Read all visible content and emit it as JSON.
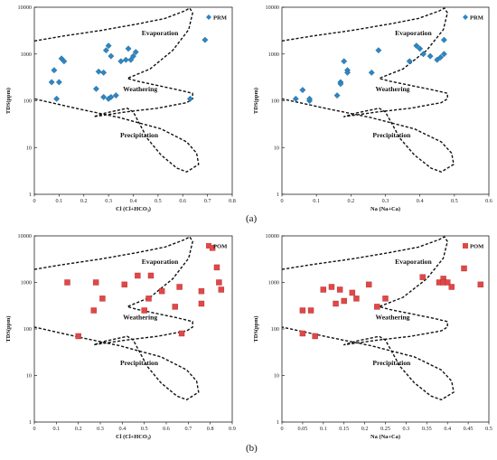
{
  "figure": {
    "panel_labels": [
      "(a)",
      "(b)"
    ]
  },
  "chart_data": [
    {
      "type": "scatter",
      "xlabel": "Cl (Cl+HCO₃)",
      "ylabel": "TDS(ppm)",
      "xlim": [
        0,
        0.8
      ],
      "ylim": [
        1,
        10000
      ],
      "yscale": "log",
      "x_ticks": [
        "0",
        "0.1",
        "0.2",
        "0.3",
        "0.4",
        "0.5",
        "0.6",
        "0.7",
        "0.8"
      ],
      "y_ticks": [
        "1",
        "10",
        "100",
        "1000",
        "10000"
      ],
      "regions": [
        "Evaporation",
        "Weathering",
        "Precipitation"
      ],
      "legend": "top-right",
      "grid": false,
      "series": [
        {
          "name": "PRM",
          "marker": "diamond",
          "color": "#2e86c1",
          "x": [
            0.07,
            0.08,
            0.09,
            0.1,
            0.11,
            0.12,
            0.25,
            0.26,
            0.28,
            0.28,
            0.29,
            0.3,
            0.3,
            0.31,
            0.31,
            0.33,
            0.35,
            0.37,
            0.38,
            0.39,
            0.4,
            0.41,
            0.63,
            0.69
          ],
          "y": [
            250,
            450,
            110,
            250,
            800,
            700,
            180,
            420,
            400,
            120,
            1200,
            1500,
            110,
            900,
            120,
            130,
            700,
            750,
            1300,
            750,
            900,
            1100,
            110,
            2000
          ]
        }
      ]
    },
    {
      "type": "scatter",
      "xlabel": "Na (Na+Ca)",
      "ylabel": "TDS(ppm)",
      "xlim": [
        0,
        0.6
      ],
      "ylim": [
        1,
        10000
      ],
      "yscale": "log",
      "x_ticks": [
        "0",
        "0.1",
        "0.2",
        "0.3",
        "0.4",
        "0.5",
        "0.6"
      ],
      "y_ticks": [
        "1",
        "10",
        "100",
        "1000",
        "10000"
      ],
      "regions": [
        "Evaporation",
        "Weathering",
        "Precipitation"
      ],
      "legend": "top-right",
      "grid": false,
      "series": [
        {
          "name": "PRM",
          "marker": "diamond",
          "color": "#2e86c1",
          "x": [
            0.04,
            0.06,
            0.08,
            0.08,
            0.16,
            0.17,
            0.17,
            0.18,
            0.19,
            0.19,
            0.26,
            0.28,
            0.37,
            0.39,
            0.4,
            0.41,
            0.43,
            0.45,
            0.46,
            0.47,
            0.47
          ],
          "y": [
            110,
            170,
            100,
            110,
            130,
            250,
            230,
            700,
            450,
            400,
            400,
            1200,
            700,
            1500,
            1300,
            1000,
            900,
            750,
            850,
            1000,
            2000
          ]
        }
      ]
    },
    {
      "type": "scatter",
      "xlabel": "Cl (Cl+HCO₃)",
      "ylabel": "TDS(ppm)",
      "xlim": [
        0,
        0.9
      ],
      "ylim": [
        1,
        10000
      ],
      "yscale": "log",
      "x_ticks": [
        "0",
        "0.1",
        "0.2",
        "0.3",
        "0.4",
        "0.5",
        "0.6",
        "0.7",
        "0.8",
        "0.9"
      ],
      "y_ticks": [
        "1",
        "10",
        "100",
        "1000",
        "10000"
      ],
      "regions": [
        "Evaporation",
        "Weathering",
        "Precipitation"
      ],
      "legend": "top-right",
      "grid": false,
      "series": [
        {
          "name": "POM",
          "marker": "square",
          "color": "#e04848",
          "x": [
            0.15,
            0.2,
            0.27,
            0.28,
            0.31,
            0.41,
            0.47,
            0.5,
            0.52,
            0.53,
            0.58,
            0.64,
            0.66,
            0.67,
            0.76,
            0.76,
            0.81,
            0.83,
            0.84,
            0.85
          ],
          "y": [
            1000,
            70,
            250,
            1000,
            450,
            900,
            1400,
            250,
            450,
            1400,
            650,
            300,
            800,
            80,
            350,
            650,
            5500,
            2100,
            1000,
            700
          ]
        }
      ]
    },
    {
      "type": "scatter",
      "xlabel": "Na (Na+Ca)",
      "ylabel": "TDS(ppm)",
      "xlim": [
        0,
        0.5
      ],
      "ylim": [
        1,
        10000
      ],
      "yscale": "log",
      "x_ticks": [
        "0",
        "0.05",
        "0.1",
        "0.15",
        "0.2",
        "0.25",
        "0.3",
        "0.35",
        "0.4",
        "0.45",
        "0.5"
      ],
      "y_ticks": [
        "1",
        "10",
        "100",
        "1000",
        "10000"
      ],
      "regions": [
        "Evaporation",
        "Weathering",
        "Precipitation"
      ],
      "legend": "top-right",
      "grid": false,
      "series": [
        {
          "name": "POM",
          "marker": "square",
          "color": "#e04848",
          "x": [
            0.05,
            0.05,
            0.07,
            0.08,
            0.1,
            0.12,
            0.13,
            0.14,
            0.15,
            0.17,
            0.18,
            0.21,
            0.23,
            0.25,
            0.34,
            0.38,
            0.39,
            0.39,
            0.4,
            0.41,
            0.44,
            0.48
          ],
          "y": [
            250,
            80,
            250,
            70,
            700,
            800,
            350,
            700,
            400,
            600,
            450,
            900,
            300,
            450,
            1300,
            1000,
            1200,
            1000,
            1000,
            800,
            2000,
            900
          ]
        }
      ]
    }
  ]
}
